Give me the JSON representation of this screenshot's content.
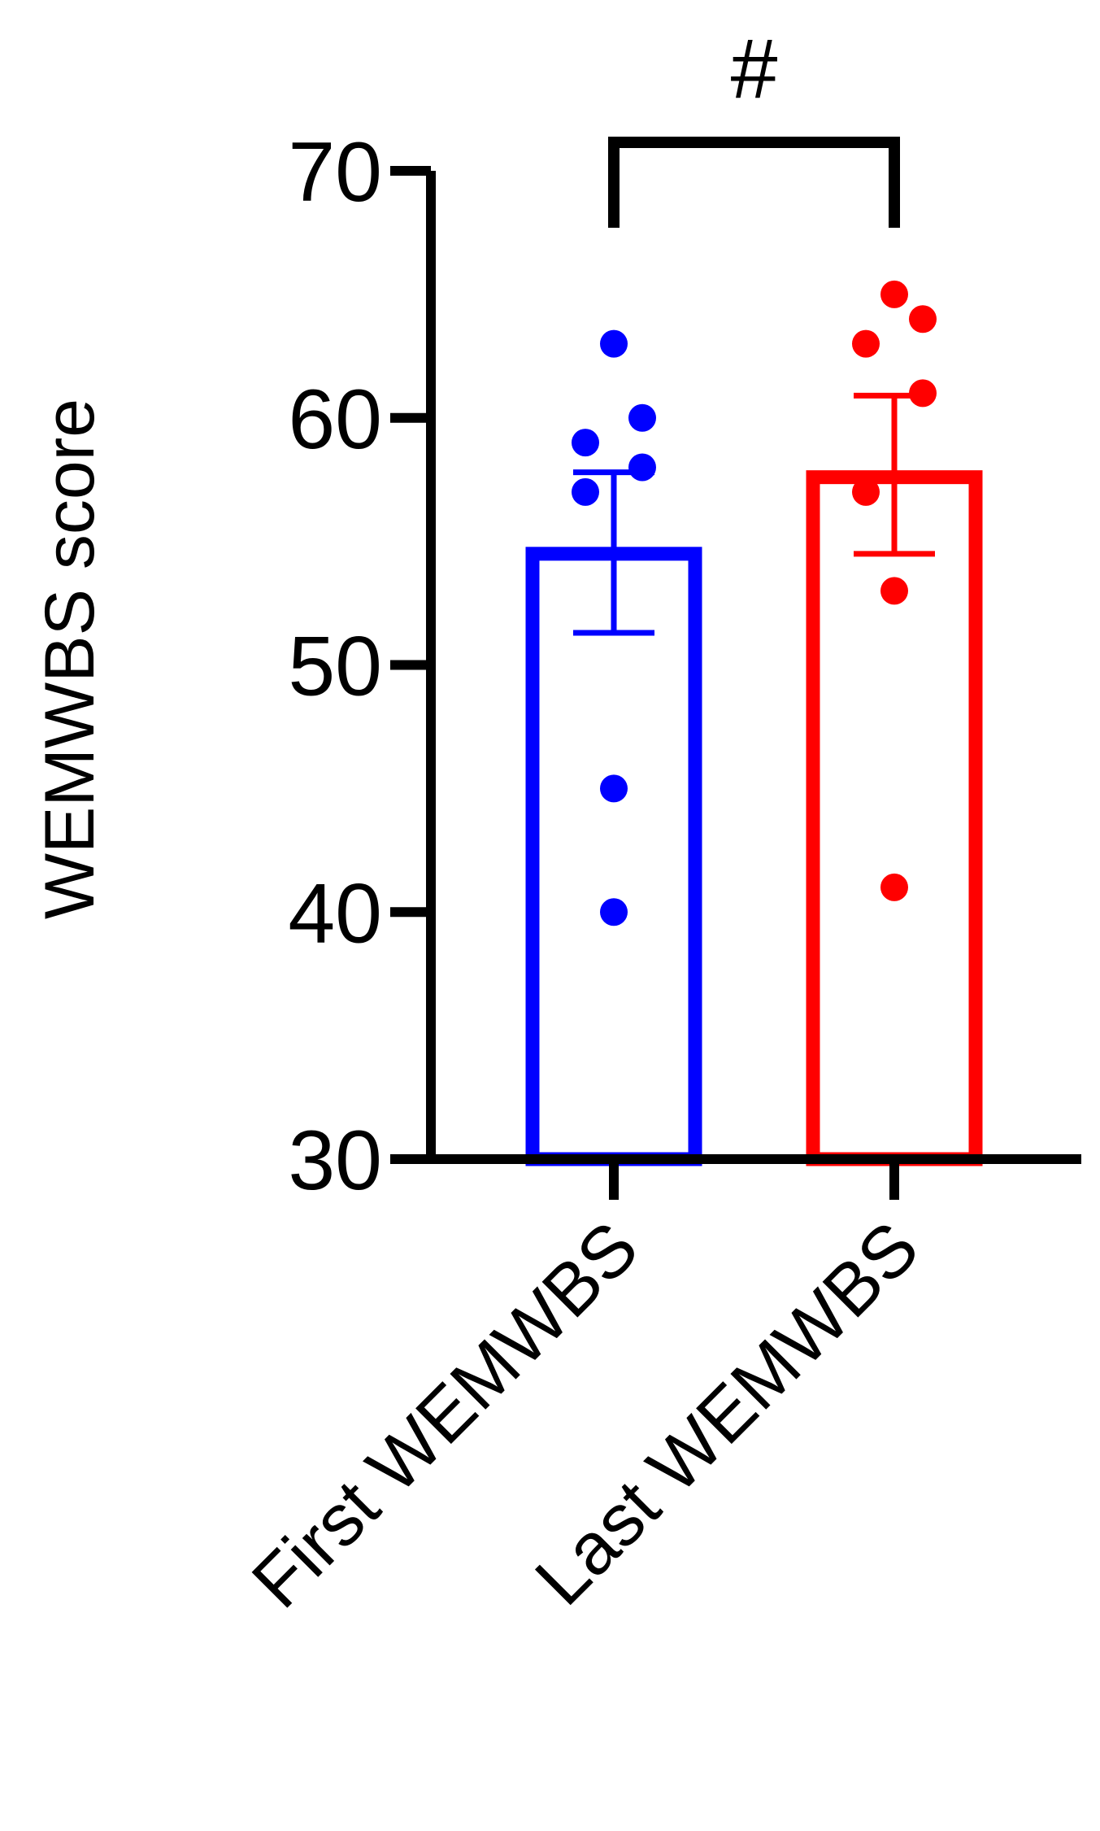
{
  "chart_data": {
    "type": "bar",
    "ylabel": "WEMWBS score",
    "xlabel": "",
    "ylim": [
      30,
      70
    ],
    "yticks": [
      30,
      40,
      50,
      60,
      70
    ],
    "grid": false,
    "categories": [
      "First WEMWBS",
      "Last WEMWBS"
    ],
    "values": [
      54.5,
      57.6
    ],
    "error_low": [
      51.3,
      54.5
    ],
    "error_high": [
      57.8,
      60.9
    ],
    "points": [
      [
        63,
        60,
        59,
        58,
        57,
        45,
        40
      ],
      [
        65,
        64,
        63,
        61,
        57,
        53,
        41
      ]
    ],
    "significance": {
      "label": "#",
      "between": [
        0,
        1
      ]
    },
    "colors": [
      "#0000ff",
      "#ff0000"
    ]
  }
}
